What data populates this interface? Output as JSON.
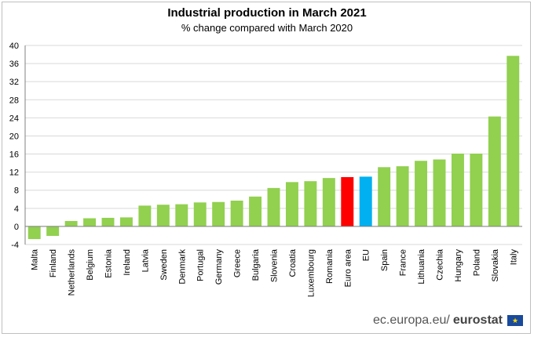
{
  "chart_data": {
    "type": "bar",
    "title": "Industrial production in March 2021",
    "subtitle": "% change compared with March 2020",
    "xlabel": "",
    "ylabel": "",
    "ylim": [
      -4,
      40
    ],
    "yticks": [
      -4,
      0,
      4,
      8,
      12,
      16,
      20,
      24,
      28,
      32,
      36,
      40
    ],
    "grid": true,
    "categories": [
      "Malta",
      "Finland",
      "Netherlands",
      "Belgium",
      "Estonia",
      "Ireland",
      "Latvia",
      "Sweden",
      "Denmark",
      "Portugal",
      "Germany",
      "Greece",
      "Bulgaria",
      "Slovenia",
      "Croatia",
      "Luxembourg",
      "Romania",
      "Euro area",
      "EU",
      "Spain",
      "France",
      "Lithuania",
      "Czechia",
      "Hungary",
      "Poland",
      "Slovakia",
      "Italy"
    ],
    "values": [
      -2.8,
      -2.1,
      1.2,
      1.8,
      1.9,
      2.0,
      4.6,
      4.8,
      4.9,
      5.3,
      5.4,
      5.7,
      6.6,
      8.5,
      9.8,
      10.0,
      10.7,
      10.9,
      11.0,
      13.1,
      13.3,
      14.5,
      14.8,
      16.1,
      16.1,
      24.3,
      37.7
    ],
    "colors": {
      "default": "#92d050",
      "Euro area": "#ff0000",
      "EU": "#00b0f0",
      "grid": "#d9d9d9",
      "axis": "#808080"
    }
  },
  "footer": {
    "site": "ec.europa.eu/",
    "brand": "eurostat",
    "logo": "eu-flag-icon"
  }
}
